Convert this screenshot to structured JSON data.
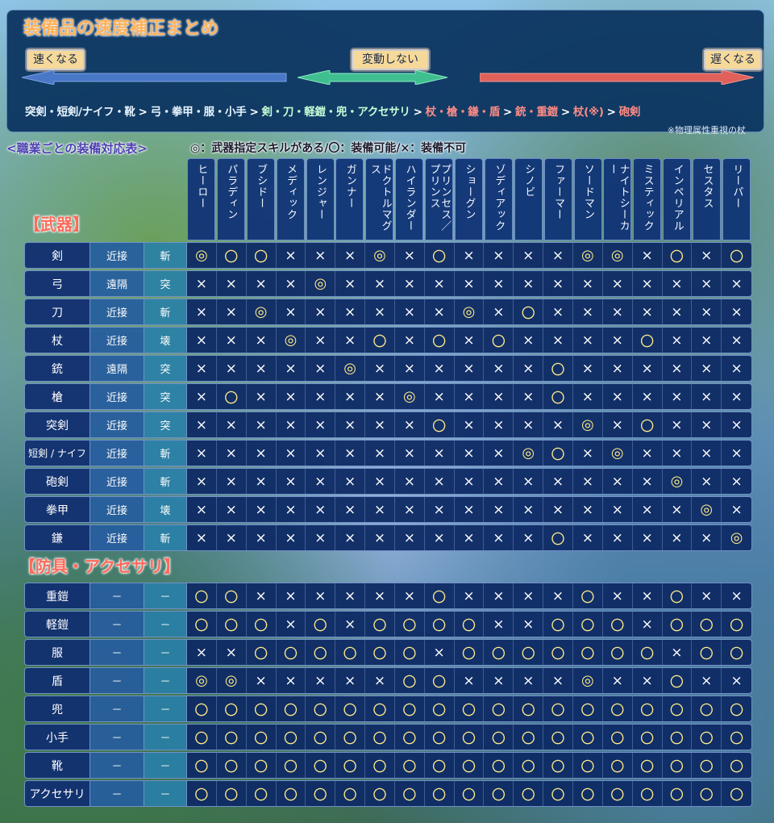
{
  "title": "装備品の速度補正まとめ",
  "speed": {
    "faster_label": "速くなる",
    "nochange_label": "変動しない",
    "slower_label": "遅くなる",
    "order": [
      {
        "group": "blue",
        "text": "突剣・短剣/ナイフ・靴"
      },
      {
        "group": "blue",
        "text": "弓・拳甲・服・小手"
      },
      {
        "group": "green",
        "text": "剣・刀・軽鎧・兜・アクセサリ"
      },
      {
        "group": "red",
        "text": "杖・槍・鎌・盾"
      },
      {
        "group": "red",
        "text": "銃・重鎧"
      },
      {
        "group": "red",
        "text": "杖(※)"
      },
      {
        "group": "red",
        "text": "砲剣"
      }
    ],
    "separator": ">",
    "note": "※物理属性重視の杖",
    "colors": {
      "blue": "#4a78c8",
      "green": "#3fbf8f",
      "red": "#e0605a"
    }
  },
  "legend": {
    "heading": "<職業ごとの装備対応表>",
    "text": "◎：武器指定スキルがある/〇：装備可能/×：装備不可"
  },
  "jobs": [
    "ヒーロー",
    "パラディン",
    "ブシドー",
    "メディック",
    "レンジャー",
    "ガンナー",
    "ドクトルマグス",
    "ハイランダー",
    "プリンセス／プリンス",
    "ショーグン",
    "ゾディアック",
    "シノビ",
    "ファーマー",
    "ソードマン",
    "ナイトシーカー",
    "ミスティック",
    "インペリアル",
    "セスタス",
    "リーパー"
  ],
  "sections": {
    "weapons_title": "【武器】",
    "armor_title": "【防具・アクセサリ】"
  },
  "symbols": {
    "double": "◎",
    "circle": "〇",
    "cross": "×"
  },
  "weapons": [
    {
      "name": "剣",
      "range": "近接",
      "attr": "斬",
      "marks": "dccxxxdxcxxxxddxcxc"
    },
    {
      "name": "弓",
      "range": "遠隔",
      "attr": "突",
      "marks": "xxxxdxxxxxxxxxxxxxx"
    },
    {
      "name": "刀",
      "range": "近接",
      "attr": "斬",
      "marks": "xxdxxxxxxdxcxxxxxxx"
    },
    {
      "name": "杖",
      "range": "近接",
      "attr": "壊",
      "marks": "xxxdxxcxcxcxxxxcxxx"
    },
    {
      "name": "銃",
      "range": "遠隔",
      "attr": "突",
      "marks": "xxxxxdxxxxxxcxxxxxx"
    },
    {
      "name": "槍",
      "range": "近接",
      "attr": "突",
      "marks": "xcxxxxxdxxxxcxxxxxx"
    },
    {
      "name": "突剣",
      "range": "近接",
      "attr": "突",
      "marks": "xxxxxxxxcxxxxdxcxxx"
    },
    {
      "name": "短剣 / ナイフ",
      "range": "近接",
      "attr": "斬",
      "marks": "xxxxxxxxxxxdcxdxxxx"
    },
    {
      "name": "砲剣",
      "range": "近接",
      "attr": "斬",
      "marks": "xxxxxxxxxxxxxxxxdxx"
    },
    {
      "name": "拳甲",
      "range": "近接",
      "attr": "壊",
      "marks": "xxxxxxxxxxxxxxxxxdx"
    },
    {
      "name": "鎌",
      "range": "近接",
      "attr": "斬",
      "marks": "xxxxxxxxxxxxcxxxxxd"
    }
  ],
  "armor": [
    {
      "name": "重鎧",
      "range": "－",
      "attr": "－",
      "marks": "ccxxxxxxcxxxxcxxcxx"
    },
    {
      "name": "軽鎧",
      "range": "－",
      "attr": "－",
      "marks": "cccxcxccccxxcccxccc"
    },
    {
      "name": "服",
      "range": "－",
      "attr": "－",
      "marks": "xxccccccxcccccccxcc"
    },
    {
      "name": "盾",
      "range": "－",
      "attr": "－",
      "marks": "ddxxxxxccxxxxdxxcxx"
    },
    {
      "name": "兜",
      "range": "－",
      "attr": "－",
      "marks": "ccccccccccccccccccc"
    },
    {
      "name": "小手",
      "range": "－",
      "attr": "－",
      "marks": "ccccccccccccccccccc"
    },
    {
      "name": "靴",
      "range": "－",
      "attr": "－",
      "marks": "ccccccccccccccccccc"
    },
    {
      "name": "アクセサリ",
      "range": "－",
      "attr": "－",
      "marks": "ccccccccccccccccccc"
    }
  ]
}
